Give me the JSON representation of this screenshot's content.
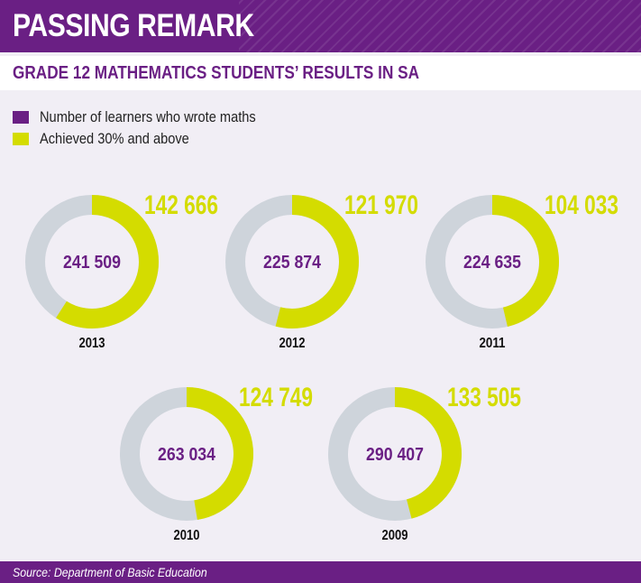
{
  "header": {
    "title": "PASSING REMARK"
  },
  "colors": {
    "purple": "#6a1f84",
    "yellow": "#d4dc00",
    "grey": "#ced4db"
  },
  "chart_data": {
    "type": "pie",
    "subtitle": "GRADE 12 MATHEMATICS STUDENTS’ RESULTS IN SA",
    "legend": [
      {
        "label": "Number of learners who wrote maths",
        "color": "#6a1f84"
      },
      {
        "label": "Achieved 30% and above",
        "color": "#d4dc00"
      }
    ],
    "series": [
      {
        "year": "2013",
        "wrote": 241509,
        "wrote_label": "241 509",
        "passed": 142666,
        "passed_label": "142 666"
      },
      {
        "year": "2012",
        "wrote": 225874,
        "wrote_label": "225 874",
        "passed": 121970,
        "passed_label": "121 970"
      },
      {
        "year": "2011",
        "wrote": 224635,
        "wrote_label": "224 635",
        "passed": 104033,
        "passed_label": "104 033"
      },
      {
        "year": "2010",
        "wrote": 263034,
        "wrote_label": "263 034",
        "passed": 124749,
        "passed_label": "124 749"
      },
      {
        "year": "2009",
        "wrote": 290407,
        "wrote_label": "290 407",
        "passed": 133505,
        "passed_label": "133 505"
      }
    ],
    "source": "Source: Department of Basic Education"
  }
}
